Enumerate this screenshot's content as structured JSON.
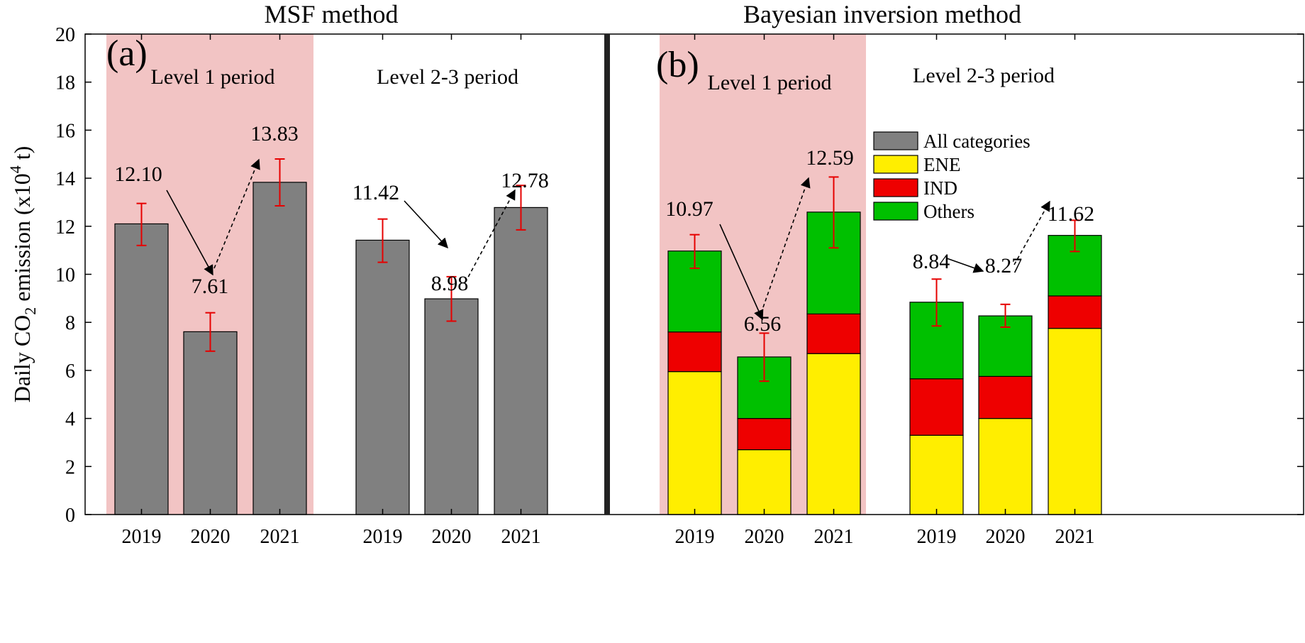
{
  "chart_data": {
    "type": "bar",
    "ylabel": {
      "pre": "Daily CO",
      "sub": "2",
      "mid": " emission (x10",
      "sup": "4",
      "post": " t)"
    },
    "ylim": [
      0,
      20
    ],
    "yticks": [
      "0",
      "2",
      "4",
      "6",
      "8",
      "10",
      "12",
      "14",
      "16",
      "18",
      "20"
    ],
    "categories": [
      "2019",
      "2020",
      "2021",
      "2019",
      "2020",
      "2021"
    ],
    "period_labels": [
      "Level 1 period",
      "Level 2-3 period"
    ],
    "colors": {
      "All categories": "#808080",
      "ENE": "#ffee00",
      "IND": "#ee0000",
      "Others": "#00c000",
      "error_bar": "#e60000",
      "level1_shade": "#f2c4c4",
      "divider": "#222222"
    },
    "panels": [
      {
        "title": "MSF method",
        "label": "(a)",
        "stacked": false,
        "series": [
          {
            "name": "All categories",
            "values": [
              12.1,
              7.61,
              13.83,
              11.42,
              8.98,
              12.78
            ]
          }
        ],
        "totals": [
          12.1,
          7.61,
          13.83,
          11.42,
          8.98,
          12.78
        ],
        "value_labels": [
          "12.10",
          "7.61",
          "13.83",
          "11.42",
          "8.98",
          "12.78"
        ],
        "error_low": [
          11.2,
          6.8,
          12.85,
          10.5,
          8.05,
          11.85
        ],
        "error_high": [
          12.95,
          8.4,
          14.8,
          12.3,
          9.9,
          13.7
        ]
      },
      {
        "title": "Bayesian inversion method",
        "label": "(b)",
        "stacked": true,
        "series": [
          {
            "name": "ENE",
            "values": [
              5.95,
              2.7,
              6.7,
              3.3,
              4.0,
              7.75
            ]
          },
          {
            "name": "IND",
            "values": [
              1.65,
              1.3,
              1.65,
              2.35,
              1.75,
              1.35
            ]
          },
          {
            "name": "Others",
            "values": [
              3.37,
              2.56,
              4.24,
              3.19,
              2.52,
              2.52
            ]
          }
        ],
        "totals": [
          10.97,
          6.56,
          12.59,
          8.84,
          8.27,
          11.62
        ],
        "value_labels": [
          "10.97",
          "6.56",
          "12.59",
          "8.84",
          "8.27",
          "11.62"
        ],
        "error_low": [
          10.25,
          5.55,
          11.1,
          7.85,
          7.8,
          10.95
        ],
        "error_high": [
          11.65,
          7.55,
          14.05,
          9.8,
          8.75,
          12.25
        ],
        "legend": [
          "All categories",
          "ENE",
          "IND",
          "Others"
        ]
      }
    ]
  }
}
